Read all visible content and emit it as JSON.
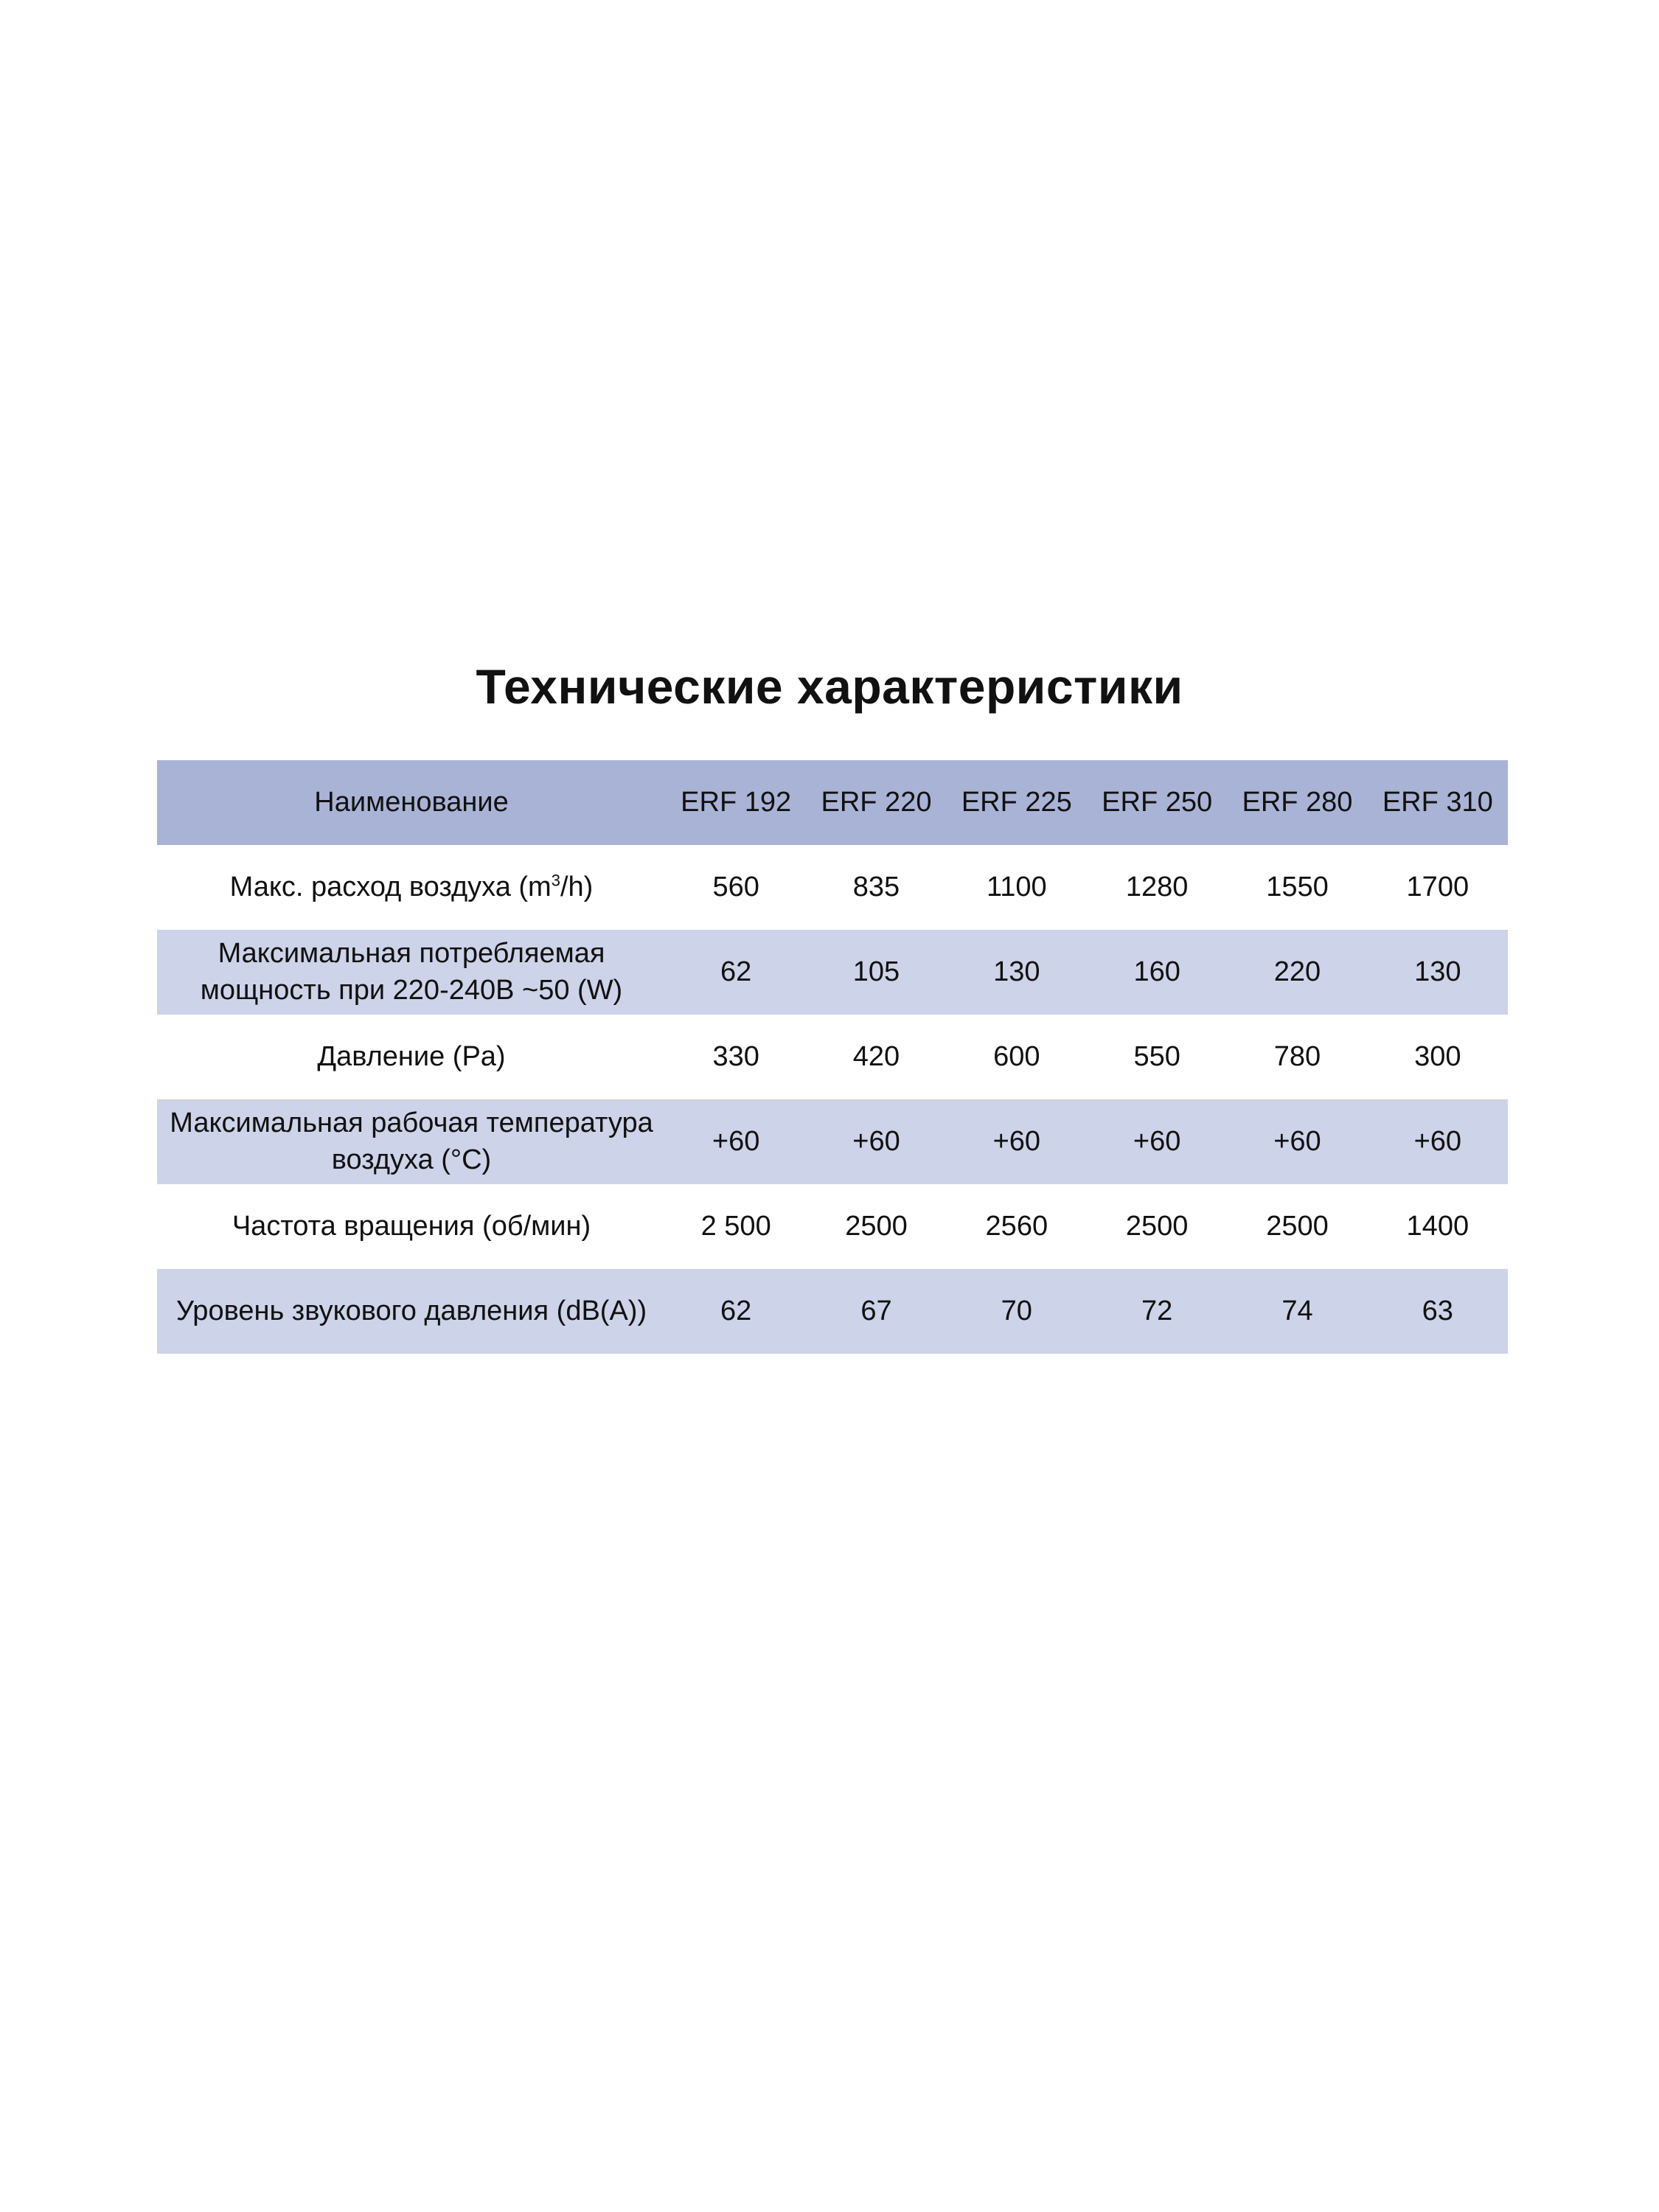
{
  "title": "Технические характеристики",
  "table": {
    "header": {
      "name": "Наименование",
      "models": [
        "ERF 192",
        "ERF 220",
        "ERF 225",
        "ERF 250",
        "ERF 280",
        "ERF 310"
      ]
    },
    "rows": [
      {
        "label": "Макс. расход воздуха (m",
        "label_sup": "3",
        "label_after": "/h)",
        "values": [
          "560",
          "835",
          "1100",
          "1280",
          "1550",
          "1700"
        ]
      },
      {
        "label": "Максимальная потребляемая мощность при 220-240В ~50 (W)",
        "values": [
          "62",
          "105",
          "130",
          "160",
          "220",
          "130"
        ]
      },
      {
        "label": "Давление (Pa)",
        "values": [
          "330",
          "420",
          "600",
          "550",
          "780",
          "300"
        ]
      },
      {
        "label": "Максимальная рабочая температура воздуха (°C)",
        "values": [
          "+60",
          "+60",
          "+60",
          "+60",
          "+60",
          "+60"
        ]
      },
      {
        "label": "Частота вращения (об/мин)",
        "values": [
          "2 500",
          "2500",
          "2560",
          "2500",
          "2500",
          "1400"
        ]
      },
      {
        "label": "Уровень звукового давления (dB(A))",
        "values": [
          "62",
          "67",
          "70",
          "72",
          "74",
          "63"
        ]
      }
    ]
  },
  "colors": {
    "header_bg": "#a9b3d6",
    "stripe_bg": "#cdd3e8"
  }
}
